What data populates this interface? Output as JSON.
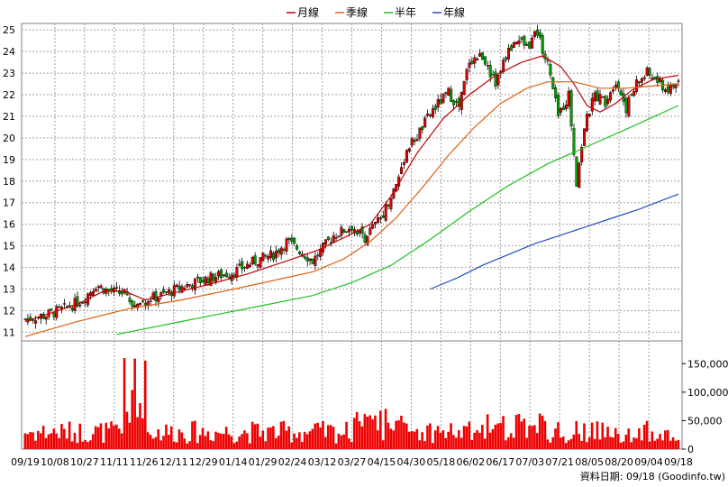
{
  "chart_data": {
    "type": "candlestick",
    "legend": [
      {
        "name": "月線",
        "color": "#c00000"
      },
      {
        "name": "季線",
        "color": "#e06010"
      },
      {
        "name": "半年",
        "color": "#20c020"
      },
      {
        "name": "年線",
        "color": "#2050c0"
      }
    ],
    "price_axis": {
      "min": 10.6,
      "max": 25.3,
      "ticks": [
        11,
        12,
        13,
        14,
        15,
        16,
        17,
        18,
        19,
        20,
        21,
        22,
        23,
        24,
        25
      ]
    },
    "volume_axis": {
      "max": 190000,
      "ticks": [
        0,
        50000,
        100000,
        150000
      ],
      "tick_labels": [
        "0",
        "50,000",
        "100,000",
        "150,000"
      ]
    },
    "x_tick_labels": [
      "09/19",
      "10/08",
      "10/27",
      "11/11",
      "11/26",
      "12/11",
      "12/29",
      "01/14",
      "01/29",
      "02/24",
      "03/12",
      "03/27",
      "04/15",
      "04/30",
      "05/18",
      "06/02",
      "06/17",
      "07/03",
      "07/21",
      "08/05",
      "08/20",
      "09/04",
      "09/18"
    ],
    "close_path": [
      [
        0,
        11.6
      ],
      [
        8,
        11.8
      ],
      [
        15,
        12.1
      ],
      [
        22,
        12.5
      ],
      [
        27,
        13.2
      ],
      [
        32,
        12.9
      ],
      [
        38,
        12.8
      ],
      [
        42,
        12.2
      ],
      [
        46,
        12.5
      ],
      [
        52,
        12.7
      ],
      [
        60,
        13.1
      ],
      [
        70,
        13.5
      ],
      [
        80,
        13.8
      ],
      [
        88,
        14.3
      ],
      [
        95,
        14.6
      ],
      [
        100,
        15.2
      ],
      [
        104,
        14.9
      ],
      [
        110,
        14.3
      ],
      [
        118,
        15.5
      ],
      [
        125,
        15.9
      ],
      [
        130,
        15.4
      ],
      [
        136,
        16.3
      ],
      [
        142,
        17.8
      ],
      [
        146,
        19.5
      ],
      [
        150,
        20.1
      ],
      [
        156,
        21.3
      ],
      [
        162,
        22.1
      ],
      [
        166,
        21.4
      ],
      [
        170,
        23.6
      ],
      [
        175,
        23.8
      ],
      [
        180,
        22.5
      ],
      [
        184,
        23.8
      ],
      [
        188,
        24.6
      ],
      [
        192,
        24.2
      ],
      [
        196,
        24.9
      ],
      [
        200,
        23.4
      ],
      [
        204,
        21.0
      ],
      [
        208,
        22.0
      ],
      [
        211,
        18.0
      ],
      [
        214,
        20.5
      ],
      [
        218,
        22.0
      ],
      [
        222,
        21.7
      ],
      [
        226,
        22.7
      ],
      [
        230,
        21.4
      ],
      [
        234,
        22.5
      ],
      [
        238,
        23.0
      ],
      [
        242,
        22.6
      ],
      [
        246,
        22.2
      ],
      [
        250,
        22.6
      ]
    ],
    "ma_month": [
      [
        0,
        11.5
      ],
      [
        10,
        11.9
      ],
      [
        20,
        12.3
      ],
      [
        30,
        12.9
      ],
      [
        38,
        12.9
      ],
      [
        46,
        12.5
      ],
      [
        56,
        12.8
      ],
      [
        70,
        13.2
      ],
      [
        85,
        13.7
      ],
      [
        100,
        14.3
      ],
      [
        112,
        14.8
      ],
      [
        124,
        15.5
      ],
      [
        132,
        16.0
      ],
      [
        140,
        17.3
      ],
      [
        150,
        19.3
      ],
      [
        160,
        20.9
      ],
      [
        170,
        22.0
      ],
      [
        180,
        22.9
      ],
      [
        190,
        23.5
      ],
      [
        198,
        23.8
      ],
      [
        205,
        23.3
      ],
      [
        210,
        22.5
      ],
      [
        215,
        21.5
      ],
      [
        220,
        21.2
      ],
      [
        226,
        21.6
      ],
      [
        232,
        22.2
      ],
      [
        240,
        22.7
      ],
      [
        250,
        22.9
      ]
    ],
    "ma_quarter": [
      [
        0,
        10.8
      ],
      [
        20,
        11.5
      ],
      [
        40,
        12.1
      ],
      [
        60,
        12.5
      ],
      [
        80,
        13.0
      ],
      [
        95,
        13.4
      ],
      [
        110,
        13.8
      ],
      [
        122,
        14.4
      ],
      [
        132,
        15.2
      ],
      [
        142,
        16.3
      ],
      [
        152,
        17.7
      ],
      [
        162,
        19.2
      ],
      [
        172,
        20.5
      ],
      [
        182,
        21.6
      ],
      [
        192,
        22.3
      ],
      [
        200,
        22.6
      ],
      [
        210,
        22.6
      ],
      [
        220,
        22.3
      ],
      [
        230,
        22.3
      ],
      [
        240,
        22.4
      ],
      [
        250,
        22.5
      ]
    ],
    "ma_half": [
      {
        "x": 35,
        "y": 10.9
      },
      {
        "x": 60,
        "y": 11.5
      },
      {
        "x": 85,
        "y": 12.1
      },
      {
        "x": 110,
        "y": 12.7
      },
      {
        "x": 125,
        "y": 13.3
      },
      {
        "x": 140,
        "y": 14.1
      },
      {
        "x": 155,
        "y": 15.3
      },
      {
        "x": 170,
        "y": 16.6
      },
      {
        "x": 185,
        "y": 17.8
      },
      {
        "x": 200,
        "y": 18.8
      },
      {
        "x": 215,
        "y": 19.6
      },
      {
        "x": 230,
        "y": 20.4
      },
      {
        "x": 250,
        "y": 21.5
      }
    ],
    "ma_year": [
      [
        155,
        13.0
      ],
      [
        165,
        13.5
      ],
      [
        175,
        14.1
      ],
      [
        185,
        14.6
      ],
      [
        195,
        15.1
      ],
      [
        205,
        15.5
      ],
      [
        215,
        15.9
      ],
      [
        225,
        16.3
      ],
      [
        235,
        16.7
      ],
      [
        250,
        17.4
      ]
    ],
    "footer": "資料日期: 09/18 (Goodinfo.tw)"
  }
}
